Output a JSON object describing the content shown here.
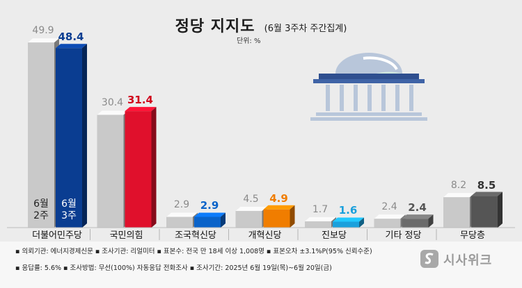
{
  "title": "정당 지지도",
  "subtitle": "(6월 3주차 주간집계)",
  "unit_note": "단위: %",
  "chart_data": {
    "type": "bar",
    "title": "정당 지지도",
    "subtitle": "(6월 3주차 주간집계)",
    "unit": "%",
    "categories": [
      "더불어민주당",
      "국민의힘",
      "조국혁신당",
      "개혁신당",
      "진보당",
      "기타 정당",
      "무당층"
    ],
    "series": [
      {
        "name": "6월 2주",
        "values": [
          49.9,
          30.4,
          2.9,
          4.5,
          1.7,
          2.4,
          8.2
        ]
      },
      {
        "name": "6월 3주",
        "values": [
          48.4,
          31.4,
          2.9,
          4.9,
          1.6,
          2.4,
          8.5
        ]
      }
    ],
    "ylim": [
      0,
      52
    ],
    "colors": {
      "prev": "#c9c9c9",
      "current": [
        "#0a3d91",
        "#e0102c",
        "#0a63c9",
        "#f07d00",
        "#1aa0dc",
        "#6b6b6b",
        "#555555"
      ],
      "current_label": [
        "#0a3d91",
        "#d0021b",
        "#0a63c9",
        "#f07d00",
        "#1aa0dc",
        "#555555",
        "#333333"
      ],
      "prev_label": "#8a8a8a"
    }
  },
  "inbar_labels": {
    "prev": "6월\n2주",
    "current": "6월\n3주"
  },
  "footer": {
    "line1": "▪ 의뢰기관: 에너지경제신문  ▪ 조사기관: 리얼미터  ▪ 표본수: 전국 만 18세 이상 1,008명  ▪ 표본오차 ±3.1%P(95% 신뢰수준)",
    "line2": "▪ 응답률: 5.6%  ▪ 조사방법: 무선(100%) 자동응답 전화조사  ▪ 조사기간: 2025년 6월 19일(목)~6월 20일(금)"
  },
  "logo_text": "시사위크"
}
